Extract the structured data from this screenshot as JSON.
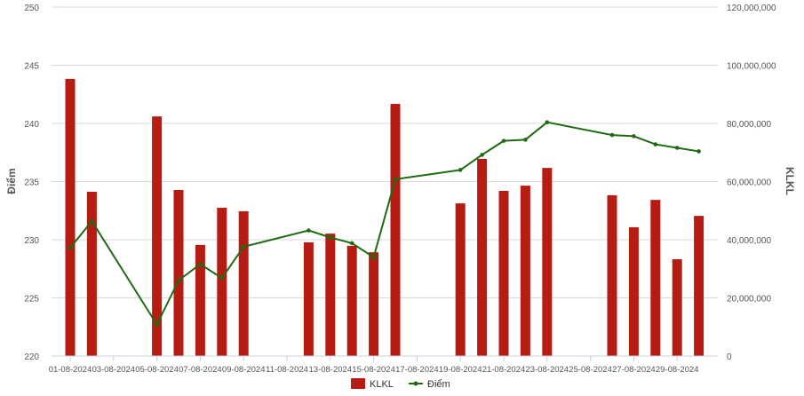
{
  "chart_data": {
    "type": "bar+line",
    "colors": {
      "bars": "#b71c13",
      "line": "#1e6b12",
      "grid": "#d8d8d8",
      "axis": "#c5cfe0",
      "text": "#555555"
    },
    "x": [
      "01-08-2024",
      "02-08-2024",
      "03-08-2024",
      "04-08-2024",
      "05-08-2024",
      "06-08-2024",
      "07-08-2024",
      "08-08-2024",
      "09-08-2024",
      "10-08-2024",
      "11-08-2024",
      "12-08-2024",
      "13-08-2024",
      "14-08-2024",
      "15-08-2024",
      "16-08-2024",
      "17-08-2024",
      "18-08-2024",
      "19-08-2024",
      "20-08-2024",
      "21-08-2024",
      "22-08-2024",
      "23-08-2024",
      "24-08-2024",
      "25-08-2024",
      "26-08-2024",
      "27-08-2024",
      "28-08-2024",
      "29-08-2024",
      "30-08-2024"
    ],
    "x_tick_labels": [
      "01-08-2024",
      "03-08-2024",
      "05-08-2024",
      "07-08-2024",
      "09-08-2024",
      "11-08-2024",
      "13-08-2024",
      "15-08-2024",
      "17-08-2024",
      "19-08-2024",
      "21-08-2024",
      "23-08-2024",
      "25-08-2024",
      "27-08-2024",
      "29-08-2024"
    ],
    "series": [
      {
        "name": "KLKL",
        "type": "bar",
        "axis": "right",
        "values": [
          95300000,
          56500000,
          null,
          null,
          82400000,
          57100000,
          38200000,
          51000000,
          49800000,
          null,
          null,
          39100000,
          42100000,
          37900000,
          35700000,
          86700000,
          null,
          null,
          52500000,
          67800000,
          56800000,
          58600000,
          64700000,
          null,
          null,
          55300000,
          44300000,
          53700000,
          33300000,
          48200000
        ]
      },
      {
        "name": "Điểm",
        "type": "line",
        "axis": "left",
        "values": [
          229.3,
          231.6,
          null,
          null,
          222.7,
          226.5,
          227.9,
          226.7,
          229.4,
          null,
          null,
          230.8,
          230.2,
          229.7,
          228.5,
          235.2,
          null,
          null,
          236.0,
          237.3,
          238.5,
          238.6,
          240.1,
          null,
          null,
          239.0,
          238.9,
          238.2,
          237.9,
          237.6
        ]
      }
    ],
    "y_left": {
      "label": "Điểm",
      "range": [
        220,
        250
      ],
      "ticks": [
        "220",
        "225",
        "230",
        "235",
        "240",
        "245",
        "250"
      ]
    },
    "y_right": {
      "label": "KLKL",
      "range": [
        0,
        120000000
      ],
      "ticks": [
        "0",
        "20,000,000",
        "40,000,000",
        "60,000,000",
        "80,000,000",
        "100,000,000",
        "120,000,000"
      ]
    },
    "grid": true,
    "legend": {
      "position": "bottom",
      "items": [
        "KLKL",
        "Điểm"
      ]
    }
  }
}
